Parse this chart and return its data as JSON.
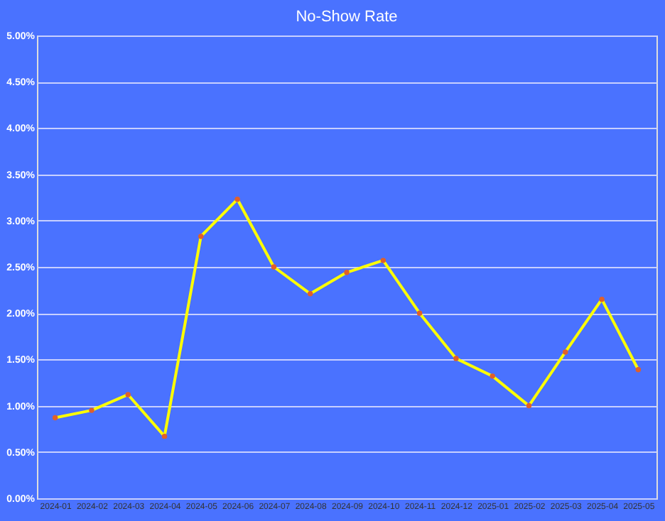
{
  "chart_data": {
    "type": "line",
    "title": "No-Show Rate",
    "categories": [
      "2024-01",
      "2024-02",
      "2024-03",
      "2024-04",
      "2024-05",
      "2024-06",
      "2024-07",
      "2024-08",
      "2024-09",
      "2024-10",
      "2024-11",
      "2024-12",
      "2025-01",
      "2025-02",
      "2025-03",
      "2025-04",
      "2025-05"
    ],
    "series": [
      {
        "color": "#ffff00",
        "values": [
          0.87,
          0.95,
          1.12,
          0.67,
          2.83,
          3.23,
          2.5,
          2.21,
          2.44,
          2.57,
          2.0,
          1.51,
          1.32,
          1.0,
          1.58,
          2.15,
          1.39
        ]
      }
    ],
    "ylim": [
      0,
      5
    ],
    "yticks": [
      {
        "value": 0,
        "label": "0.00%"
      },
      {
        "value": 0.5,
        "label": "0.50%"
      },
      {
        "value": 1,
        "label": "1.00%"
      },
      {
        "value": 1.5,
        "label": "1.50%"
      },
      {
        "value": 2,
        "label": "2.00%"
      },
      {
        "value": 2.5,
        "label": "2.50%"
      },
      {
        "value": 3,
        "label": "3.00%"
      },
      {
        "value": 3.5,
        "label": "3.50%"
      },
      {
        "value": 4,
        "label": "4.00%"
      },
      {
        "value": 4.5,
        "label": "4.50%"
      },
      {
        "value": 5,
        "label": "5.00%"
      }
    ],
    "grid": "y",
    "marker": "circle",
    "line_style": "solid"
  }
}
